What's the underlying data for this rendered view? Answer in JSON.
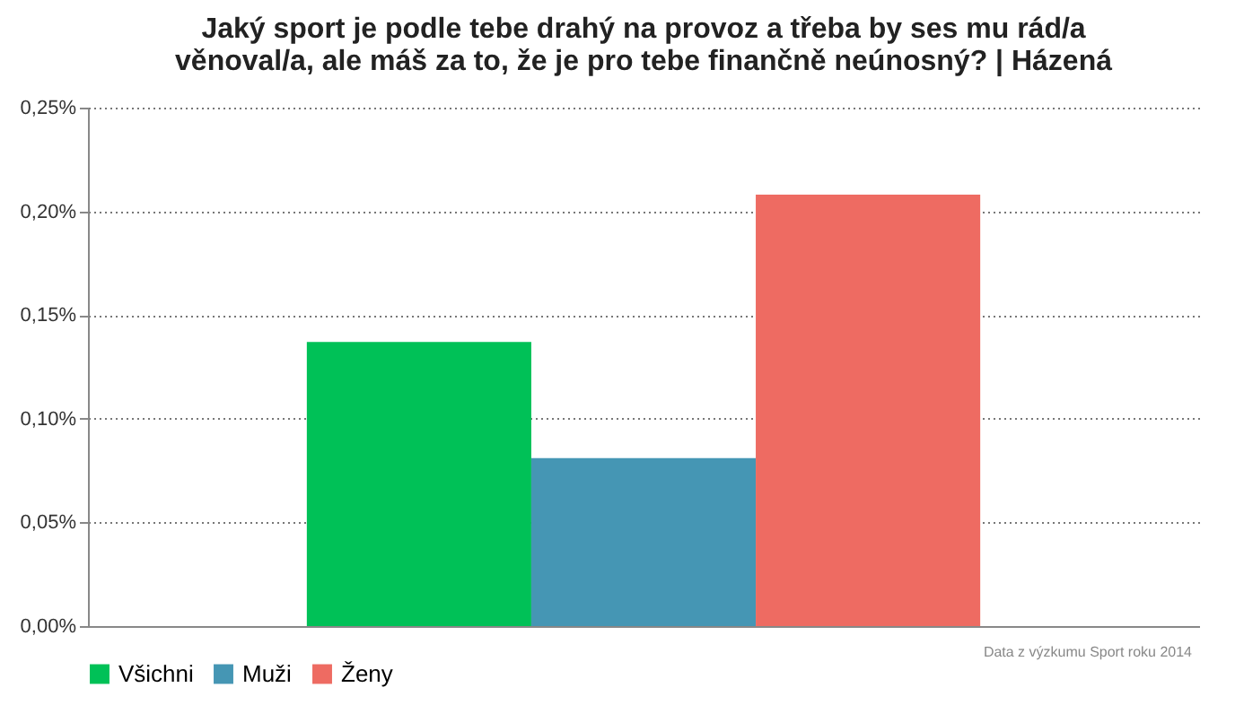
{
  "chart_data": {
    "type": "bar",
    "title": "Jaký sport je podle tebe drahý na provoz a třeba by ses mu rád/a věnoval/a, ale máš za to, že je pro tebe finančně neúnosný? | Házená",
    "categories": [
      null
    ],
    "series": [
      {
        "name": "Všichni",
        "color": "#00c157",
        "values": [
          0.137
        ]
      },
      {
        "name": "Muži",
        "color": "#4596b4",
        "values": [
          0.081
        ]
      },
      {
        "name": "Ženy",
        "color": "#ee6b62",
        "values": [
          0.208
        ]
      }
    ],
    "ylim": [
      0,
      0.25
    ],
    "yticks": [
      {
        "value": 0,
        "label": "0,00%"
      },
      {
        "value": 0.05,
        "label": "0,05%"
      },
      {
        "value": 0.1,
        "label": "0,10%"
      },
      {
        "value": 0.15,
        "label": "0,15%"
      },
      {
        "value": 0.2,
        "label": "0,20%"
      },
      {
        "value": 0.25,
        "label": "0,25%"
      }
    ],
    "grid": "y",
    "legend": "bottom",
    "annotations": [
      "Data z výzkumu Sport roku 2014"
    ]
  }
}
